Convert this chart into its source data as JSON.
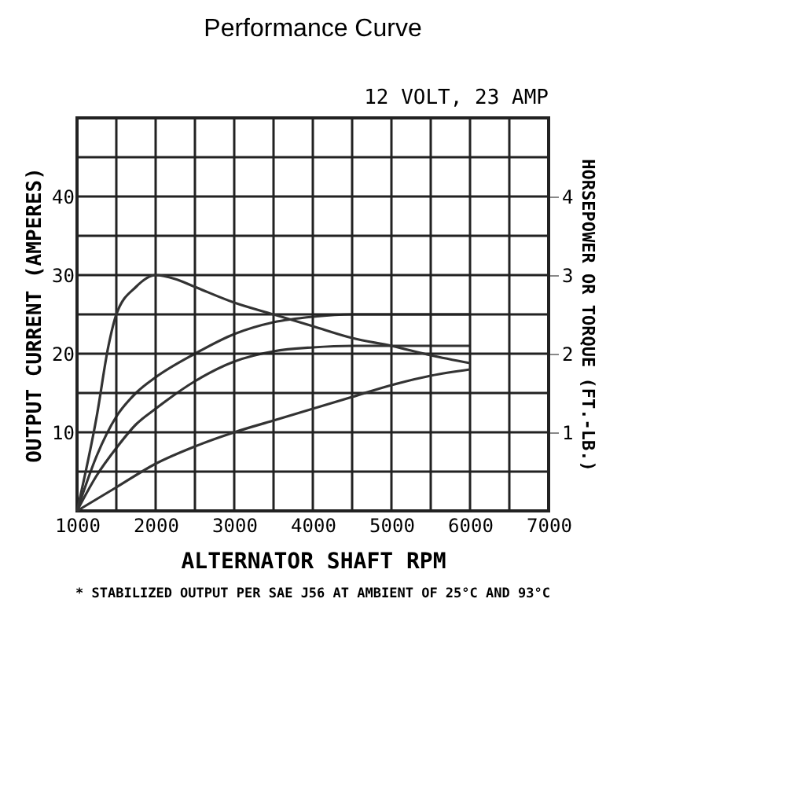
{
  "chart_data": {
    "type": "line",
    "title": "Performance Curve",
    "xlabel": "ALTERNATOR SHAFT RPM",
    "ylabel": "OUTPUT CURRENT (AMPERES)",
    "y2label": "HORSEPOWER OR TORQUE (FT.-LB.)",
    "annotations": [
      "12 VOLT, 23 AMP",
      "* STABILIZED OUTPUT PER SAE J56 AT AMBIENT OF 25°C AND 93°C"
    ],
    "xlim": [
      1000,
      7000
    ],
    "xticks": [
      1000,
      {
        "value": 1500,
        "label": null
      },
      2000,
      {
        "value": 2500,
        "label": null
      },
      3000,
      {
        "value": 3500,
        "label": null
      },
      4000,
      {
        "value": 4500,
        "label": null
      },
      5000,
      {
        "value": 5500,
        "label": null
      },
      6000,
      {
        "value": 6500,
        "label": null
      },
      7000
    ],
    "ylim": [
      0,
      50
    ],
    "yticks": [
      {
        "value": 0,
        "label": null
      },
      {
        "value": 5,
        "label": null
      },
      10,
      {
        "value": 15,
        "label": null
      },
      20,
      {
        "value": 25,
        "label": null
      },
      30,
      {
        "value": 35,
        "label": null
      },
      40,
      {
        "value": 45,
        "label": null
      },
      {
        "value": 50,
        "label": null
      }
    ],
    "y2lim": [
      0,
      5
    ],
    "y2ticks": [
      1,
      2,
      3,
      4
    ],
    "grid": true,
    "marker": "none",
    "line_style": "solid",
    "series": [
      {
        "color": "#333333",
        "x": [
          1000,
          1250,
          1500,
          1750,
          2000,
          2500,
          3000,
          3500,
          4000,
          4500,
          5000,
          5500,
          6000
        ],
        "values": [
          0,
          7,
          12,
          15,
          17,
          20,
          22.5,
          24,
          24.7,
          25,
          25,
          25,
          25
        ]
      },
      {
        "color": "#333333",
        "x": [
          1000,
          1250,
          1500,
          1750,
          2000,
          2500,
          3000,
          3500,
          4000,
          4500,
          5000,
          5500,
          6000
        ],
        "values": [
          0,
          4.5,
          8,
          11,
          13,
          16.5,
          19,
          20.3,
          20.8,
          21,
          21,
          21,
          21
        ]
      },
      {
        "color": "#333333",
        "axis": "y2",
        "x": [
          1000,
          1250,
          1400,
          1500,
          1750,
          2000,
          2250,
          2500,
          3000,
          3500,
          4000,
          4500,
          5000,
          5500,
          6000
        ],
        "values": [
          0,
          1.2,
          2.1,
          2.5,
          2.85,
          3.0,
          2.95,
          2.85,
          2.65,
          2.5,
          2.35,
          2.2,
          2.1,
          1.98,
          1.88
        ]
      },
      {
        "color": "#333333",
        "axis": "y2",
        "x": [
          1000,
          1500,
          2000,
          2500,
          3000,
          3500,
          4000,
          4500,
          5000,
          5500,
          6000
        ],
        "values": [
          0,
          0.3,
          0.6,
          0.82,
          1.0,
          1.15,
          1.3,
          1.45,
          1.6,
          1.72,
          1.8
        ]
      }
    ]
  }
}
